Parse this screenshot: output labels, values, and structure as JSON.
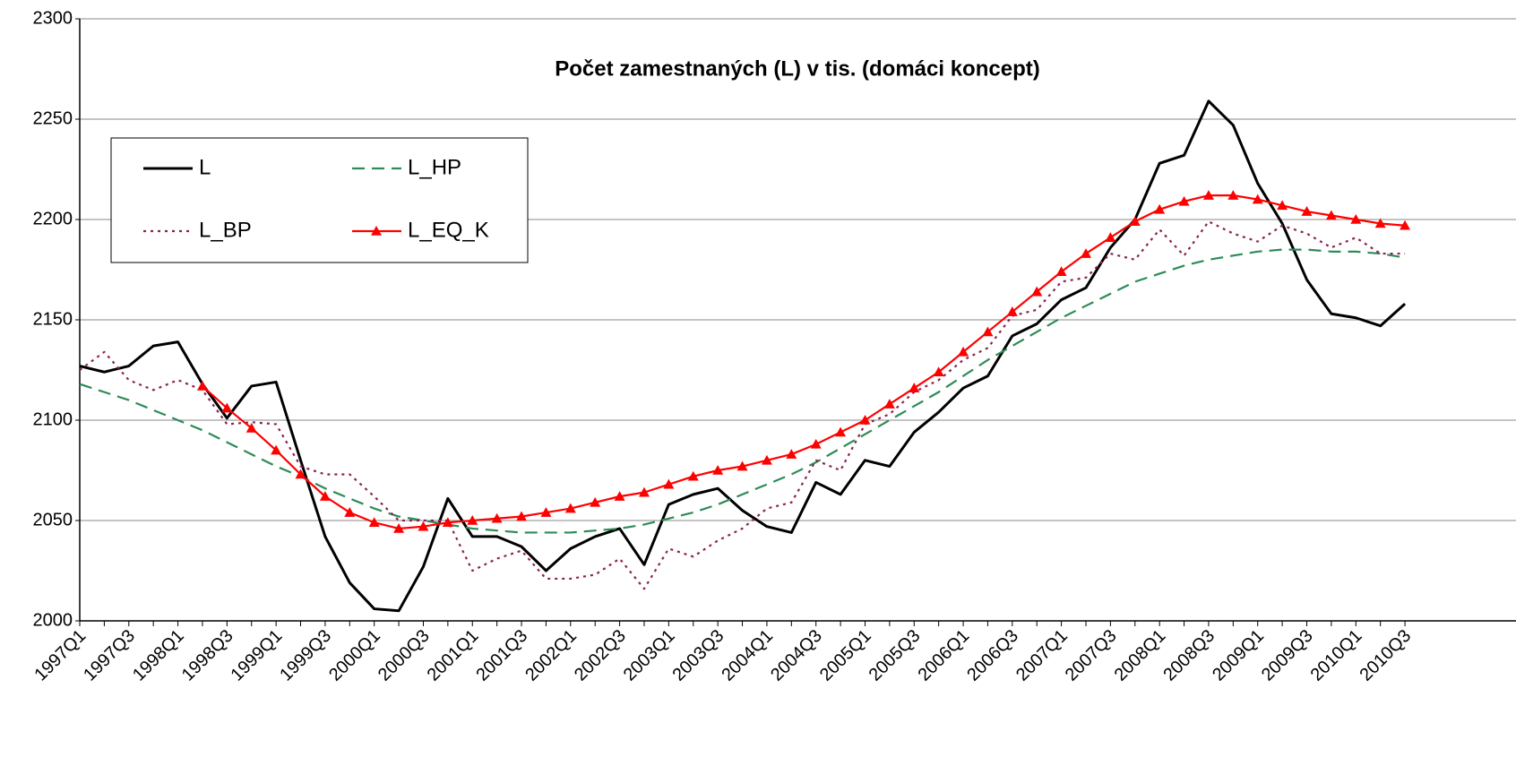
{
  "chart_data": {
    "type": "line",
    "title": "Počet zamestnaných (L) v tis. (domáci koncept)",
    "categories": [
      "1997Q1",
      null,
      "1997Q3",
      null,
      "1998Q1",
      null,
      "1998Q3",
      null,
      "1999Q1",
      null,
      "1999Q3",
      null,
      "2000Q1",
      null,
      "2000Q3",
      null,
      "2001Q1",
      null,
      "2001Q3",
      null,
      "2002Q1",
      null,
      "2002Q3",
      null,
      "2003Q1",
      null,
      "2003Q3",
      null,
      "2004Q1",
      null,
      "2004Q3",
      null,
      "2005Q1",
      null,
      "2005Q3",
      null,
      "2006Q1",
      null,
      "2006Q3",
      null,
      "2007Q1",
      null,
      "2007Q3",
      null,
      "2008Q1",
      null,
      "2008Q3",
      null,
      "2009Q1",
      null,
      "2009Q3",
      null,
      "2010Q1",
      null,
      "2010Q3"
    ],
    "series": [
      {
        "name": "L",
        "color": "#000000",
        "style": "solid",
        "values": [
          2127,
          2124,
          2127,
          2137,
          2139,
          2118,
          2101,
          2117,
          2119,
          2080,
          2042,
          2019,
          2006,
          2005,
          2027,
          2061,
          2042,
          2042,
          2037,
          2025,
          2036,
          2042,
          2046,
          2028,
          2058,
          2063,
          2066,
          2055,
          2047,
          2044,
          2069,
          2063,
          2080,
          2077,
          2094,
          2104,
          2116,
          2122,
          2142,
          2148,
          2160,
          2166,
          2186,
          2200,
          2228,
          2232,
          2259,
          2247,
          2218,
          2198,
          2170,
          2153,
          2151,
          2147,
          2158
        ]
      },
      {
        "name": "L_HP",
        "color": "#2e8b57",
        "style": "dashed",
        "values": [
          2118,
          2114,
          2110,
          2105,
          2100,
          2095,
          2089,
          2083,
          2077,
          2072,
          2066,
          2061,
          2056,
          2052,
          2050,
          2048,
          2046,
          2045,
          2044,
          2044,
          2044,
          2045,
          2046,
          2048,
          2051,
          2054,
          2058,
          2063,
          2068,
          2073,
          2079,
          2086,
          2093,
          2100,
          2107,
          2114,
          2122,
          2130,
          2137,
          2144,
          2151,
          2157,
          2163,
          2169,
          2173,
          2177,
          2180,
          2182,
          2184,
          2185,
          2185,
          2184,
          2184,
          2183,
          2181
        ]
      },
      {
        "name": "L_BP",
        "color": "#8b2252",
        "style": "dotted",
        "values": [
          2125,
          2134,
          2120,
          2115,
          2120,
          2115,
          2098,
          2099,
          2098,
          2077,
          2073,
          2073,
          2062,
          2050,
          2050,
          2050,
          2025,
          2031,
          2035,
          2021,
          2021,
          2023,
          2031,
          2016,
          2036,
          2032,
          2040,
          2046,
          2056,
          2059,
          2080,
          2075,
          2098,
          2103,
          2114,
          2120,
          2130,
          2136,
          2152,
          2155,
          2169,
          2171,
          2183,
          2180,
          2195,
          2182,
          2199,
          2193,
          2189,
          2197,
          2193,
          2186,
          2191,
          2183,
          2183
        ]
      },
      {
        "name": "L_EQ_K",
        "color": "#ff0000",
        "style": "solid",
        "marker": "triangle",
        "values": [
          null,
          null,
          null,
          null,
          null,
          2117,
          2106,
          2096,
          2085,
          2073,
          2062,
          2054,
          2049,
          2046,
          2047,
          2049,
          2050,
          2051,
          2052,
          2054,
          2056,
          2059,
          2062,
          2064,
          2068,
          2072,
          2075,
          2077,
          2080,
          2083,
          2088,
          2094,
          2100,
          2108,
          2116,
          2124,
          2134,
          2144,
          2154,
          2164,
          2174,
          2183,
          2191,
          2199,
          2205,
          2209,
          2212,
          2212,
          2210,
          2207,
          2204,
          2202,
          2200,
          2198,
          2197
        ]
      }
    ],
    "ylim": [
      2000,
      2300
    ],
    "yticks": [
      2000,
      2050,
      2100,
      2150,
      2200,
      2250,
      2300
    ],
    "grid": true,
    "legend": "upper left"
  }
}
